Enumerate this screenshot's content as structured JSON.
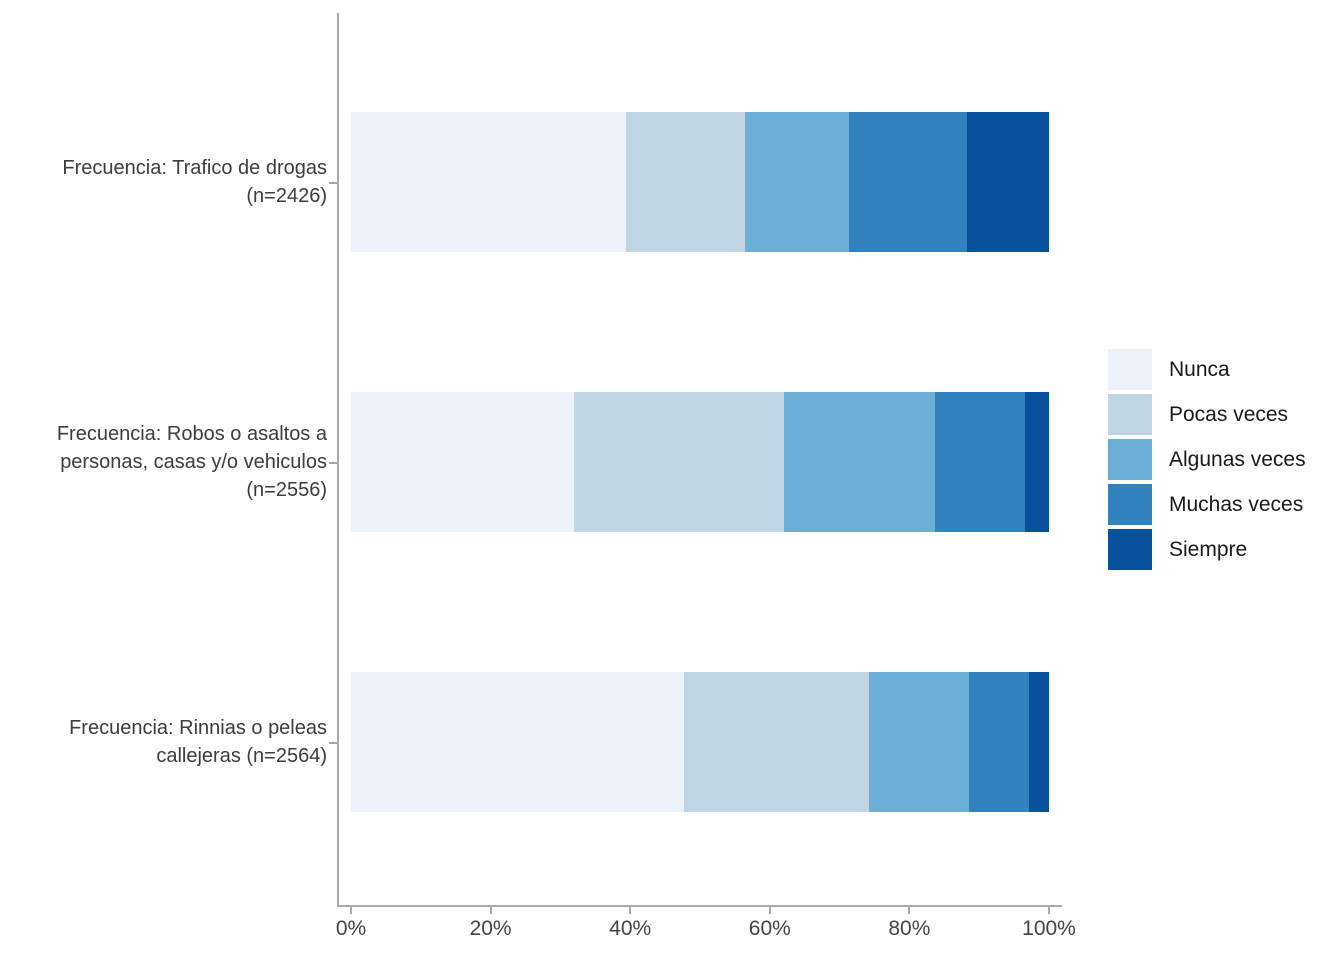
{
  "chart_data": {
    "type": "bar",
    "variant": "horizontal-stacked-100pct",
    "title": "",
    "xlabel": "",
    "ylabel": "",
    "x_range": [
      0,
      100
    ],
    "x_ticks": {
      "values": [
        0,
        20,
        40,
        60,
        80,
        100
      ],
      "labels": [
        "0%",
        "20%",
        "40%",
        "60%",
        "80%",
        "100%"
      ]
    },
    "grid": false,
    "categories": [
      {
        "label_lines": [
          "Frecuencia: Trafico de drogas",
          "(n=2426)"
        ],
        "n": 2426
      },
      {
        "label_lines": [
          "Frecuencia: Robos o asaltos a",
          "personas, casas y/o vehiculos",
          "(n=2556)"
        ],
        "n": 2556
      },
      {
        "label_lines": [
          "Frecuencia: Rinnias o peleas",
          "callejeras (n=2564)"
        ],
        "n": 2564
      }
    ],
    "series": [
      {
        "name": "Nunca",
        "color": "#ecf1fa",
        "values": [
          39.4,
          32.0,
          47.7
        ]
      },
      {
        "name": "Pocas veces",
        "color": "#c0d6e4",
        "values": [
          17.1,
          30.0,
          26.5
        ]
      },
      {
        "name": "Algunas veces",
        "color": "#6baed6",
        "values": [
          14.9,
          21.6,
          14.3
        ]
      },
      {
        "name": "Muchas veces",
        "color": "#3182bd",
        "values": [
          16.9,
          12.9,
          8.6
        ]
      },
      {
        "name": "Siempre",
        "color": "#08519c",
        "values": [
          11.7,
          3.5,
          2.9
        ]
      }
    ],
    "legend": {
      "position": "right",
      "entries": [
        "Nunca",
        "Pocas veces",
        "Algunas veces",
        "Muchas veces",
        "Siempre"
      ]
    }
  },
  "colors": {
    "background": "#ffffff",
    "axis": "#ababab",
    "label_text": "#3d3d3d",
    "tick_text": "#444444",
    "legend_text": "#1a1a1a"
  }
}
